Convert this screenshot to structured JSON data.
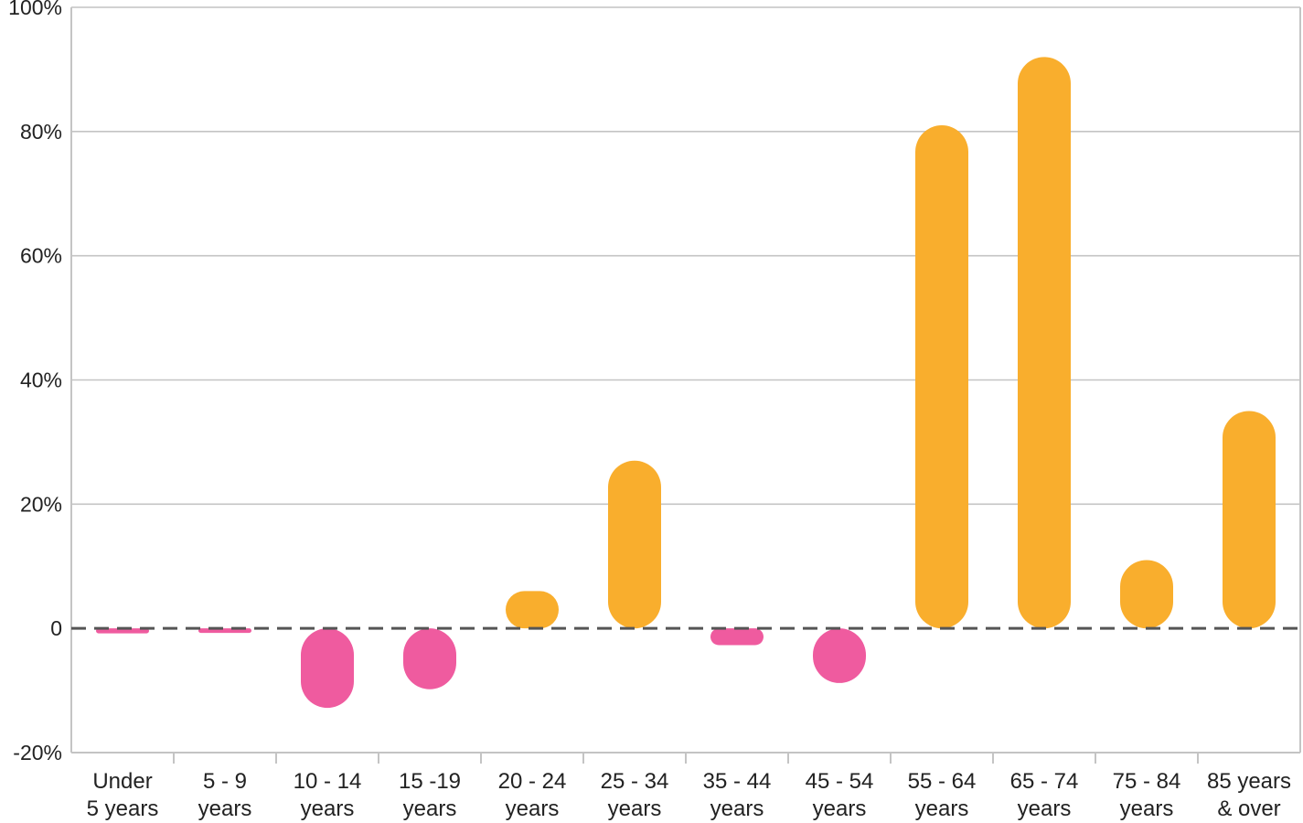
{
  "chart_data": {
    "type": "bar",
    "title": "",
    "xlabel": "",
    "ylabel": "",
    "ylim": [
      -20,
      100
    ],
    "ytick_values": [
      -20,
      0,
      20,
      40,
      60,
      80,
      100
    ],
    "ytick_labels": [
      "-20%",
      "0",
      "20%",
      "40%",
      "60%",
      "80%",
      "100%"
    ],
    "grid": true,
    "legend": "none",
    "zero_line": "dashed",
    "categories": [
      [
        "Under",
        "5 years"
      ],
      [
        "5 - 9",
        "years"
      ],
      [
        "10 - 14",
        "years"
      ],
      [
        "15 -19",
        "years"
      ],
      [
        "20 - 24",
        "years"
      ],
      [
        "25 - 34",
        "years"
      ],
      [
        "35 - 44",
        "years"
      ],
      [
        "45 - 54",
        "years"
      ],
      [
        "55 - 64",
        "years"
      ],
      [
        "65 - 74",
        "years"
      ],
      [
        "75 - 84",
        "years"
      ],
      [
        "85 years",
        "& over"
      ]
    ],
    "values": [
      -0.8,
      -0.7,
      -12.8,
      -9.8,
      6,
      27,
      -2.7,
      -8.8,
      81,
      92,
      11,
      35
    ],
    "colors": {
      "positive": "#F9AE2D",
      "negative": "#EF5B9F",
      "grid": "#c4c4c4",
      "zero_line": "#555555"
    }
  }
}
